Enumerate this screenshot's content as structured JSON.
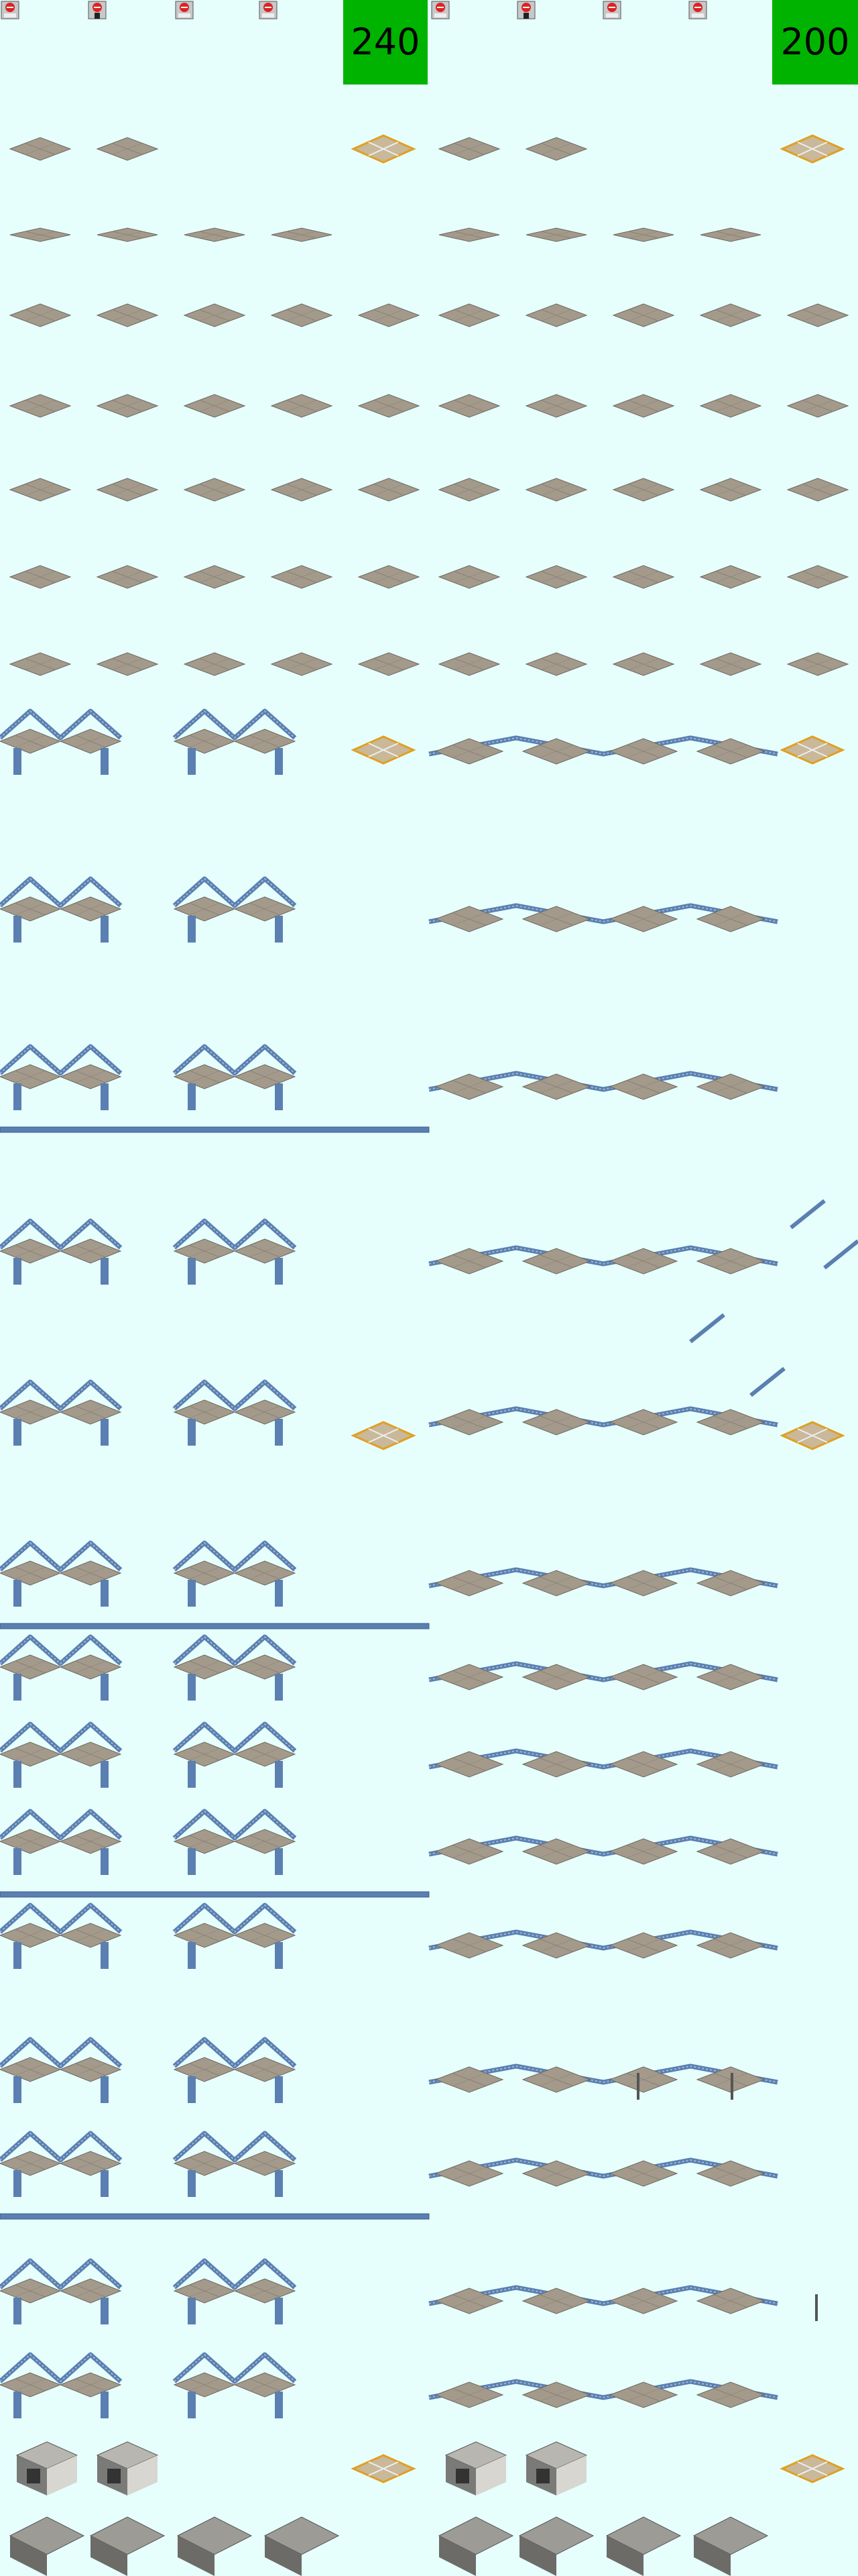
{
  "badges": {
    "left_number": "240",
    "right_number": "200"
  },
  "signs": {
    "icon": "no-entry-sign-icon"
  },
  "colors": {
    "background": "#e6fffd",
    "badge": "#00b300",
    "deck": "#a39a8c",
    "truss": "#5a7fb0",
    "concrete": "#7a7a78"
  }
}
